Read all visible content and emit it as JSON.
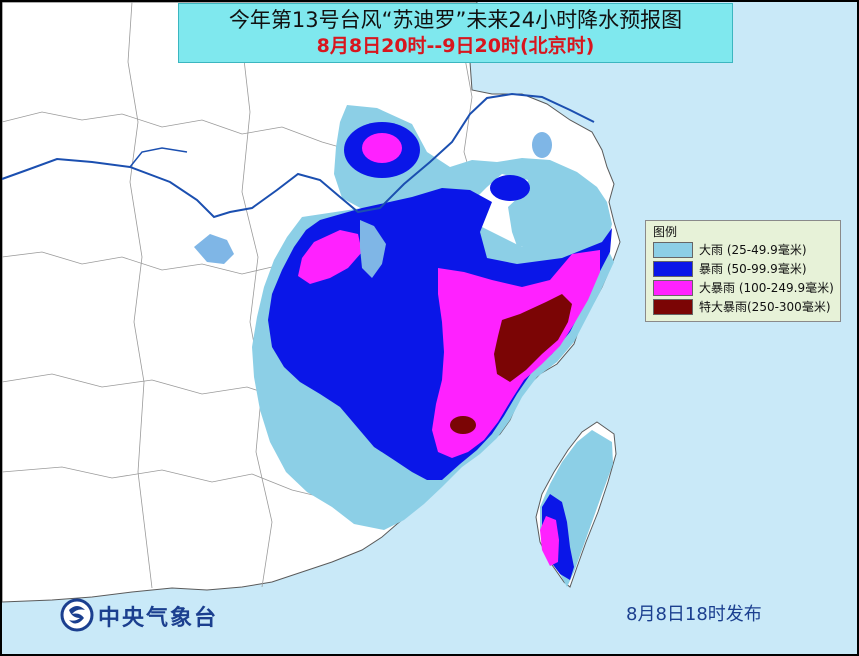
{
  "title": {
    "line1": "今年第13号台风“苏迪罗”未来24小时降水预报图",
    "line2": "8月8日20时--9日20时(北京时)"
  },
  "legend": {
    "title": "图例",
    "items": [
      {
        "label": "大雨 (25-49.9毫米)",
        "color": "#8ccfe6"
      },
      {
        "label": "暴雨 (50-99.9毫米)",
        "color": "#0a16e8"
      },
      {
        "label": "大暴雨 (100-249.9毫米)",
        "color": "#ff21ff"
      },
      {
        "label": "特大暴雨(250-300毫米)",
        "color": "#7b0505"
      }
    ]
  },
  "colors": {
    "sea": "#c9e9f8",
    "land": "#ffffff",
    "title_background": "#7fe8ee",
    "title_date_text": "#d8161e",
    "river": "#1b4fb0",
    "lake": "#7fb6e6",
    "boundary": "#9a9a9a",
    "legend_background": "#e7f2d8"
  },
  "logo": {
    "icon": "cma-emblem-icon",
    "text": "中央气象台"
  },
  "issue_time": "8月8日18时发布"
}
